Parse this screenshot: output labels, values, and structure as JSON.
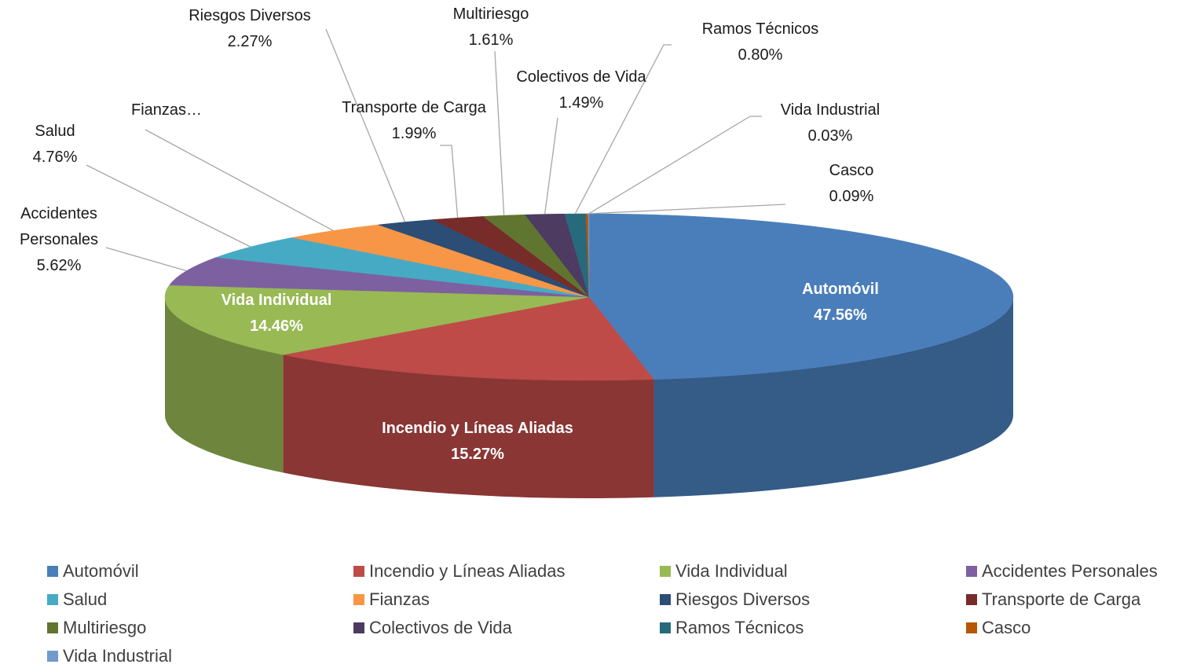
{
  "chart_data": {
    "type": "pie3d",
    "categories": [
      "Automóvil",
      "Incendio y Líneas Aliadas",
      "Vida Individual",
      "Accidentes Personales",
      "Salud",
      "Fianzas",
      "Riesgos  Diversos",
      "Transporte de Carga",
      "Multiriesgo",
      "Colectivos de Vida",
      "Ramos Técnicos",
      "Casco",
      "Vida Industrial"
    ],
    "values": [
      47.56,
      15.27,
      14.46,
      5.62,
      4.76,
      4.05,
      2.27,
      1.99,
      1.61,
      1.49,
      0.8,
      0.09,
      0.03
    ],
    "value_labels": [
      "47.56%",
      "15.27%",
      "14.46%",
      "5.62%",
      "4.76%",
      null,
      "2.27%",
      "1.99%",
      "1.61%",
      "1.49%",
      "0.80%",
      "0.09%",
      "0.03%"
    ],
    "label_names": [
      "Automóvil",
      "Incendio y Líneas Aliadas",
      "Vida Individual",
      "Accidentes Personales",
      "Salud",
      "Fianzas…",
      "Riesgos  Diversos",
      "Transporte de Carga",
      "Multiriesgo",
      "Colectivos de Vida",
      "Ramos Técnicos",
      "Casco",
      "Vida Industrial"
    ],
    "colors": [
      "#4a7ebb",
      "#be4b48",
      "#98b954",
      "#7d60a0",
      "#46aac5",
      "#f79646",
      "#2c4d75",
      "#772c2a",
      "#5f7530",
      "#4d3b62",
      "#276a7c",
      "#b65708",
      "#729aca"
    ],
    "legend": "bottom"
  }
}
